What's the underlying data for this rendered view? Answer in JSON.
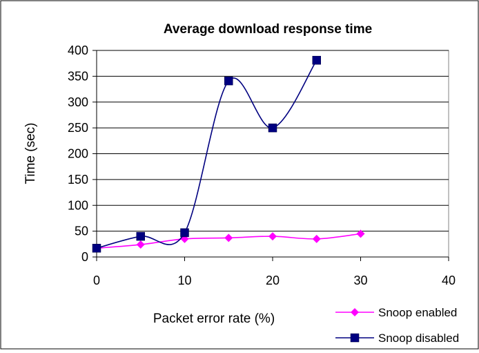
{
  "chart_data": {
    "type": "line",
    "title": "Average download response time",
    "xlabel": "Packet error rate (%)",
    "ylabel": "Time (sec)",
    "xlim": [
      0,
      40
    ],
    "ylim": [
      0,
      400
    ],
    "x_ticks": [
      "0",
      "10",
      "20",
      "30",
      "40"
    ],
    "y_ticks": [
      "0",
      "50",
      "100",
      "150",
      "200",
      "250",
      "300",
      "350",
      "400"
    ],
    "grid": "horizontal",
    "legend_position": "bottom-right",
    "smooth": true,
    "series": [
      {
        "name": "Snoop enabled",
        "color": "#ff00ff",
        "marker": "diamond",
        "x": [
          0,
          5,
          10,
          15,
          20,
          25,
          30
        ],
        "y": [
          17,
          24,
          35,
          37,
          40,
          35,
          45
        ]
      },
      {
        "name": "Snoop disabled",
        "color": "#000080",
        "marker": "square",
        "x": [
          0,
          5,
          10,
          15,
          20,
          25
        ],
        "y": [
          17,
          40,
          47,
          341,
          250,
          381
        ]
      }
    ]
  }
}
